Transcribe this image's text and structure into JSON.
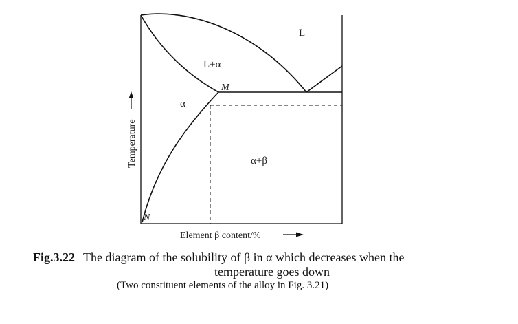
{
  "diagram": {
    "regions": {
      "liquid": "L",
      "liquid_alpha": "L+α",
      "alpha": "α",
      "alpha_beta": "α+β"
    },
    "points": {
      "m": "M",
      "n": "N"
    },
    "axes": {
      "y_label": "Temperature",
      "x_label": "Element β content/%"
    }
  },
  "caption": {
    "figure_number": "Fig.3.22",
    "title_line1": "The diagram of the solubility of β in α which decreases when the",
    "title_line2": "temperature goes down",
    "subtitle": "(Two constituent elements of the alloy in Fig. 3.21)"
  }
}
